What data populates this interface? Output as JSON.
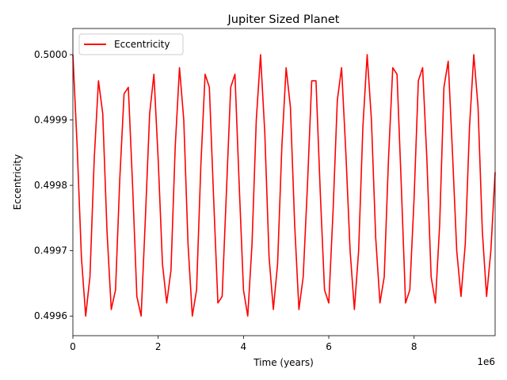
{
  "chart_data": {
    "type": "line",
    "title": "Jupiter Sized Planet",
    "xlabel": "Time (years)",
    "ylabel": "Eccentricity",
    "x_offset_label": "1e6",
    "xlim": [
      0,
      9.9
    ],
    "ylim": [
      0.49957,
      0.50004
    ],
    "xticks": [
      0,
      2,
      4,
      6,
      8
    ],
    "xtick_labels": [
      "0",
      "2",
      "4",
      "6",
      "8"
    ],
    "yticks": [
      0.4996,
      0.4997,
      0.4998,
      0.4999,
      0.5
    ],
    "ytick_labels": [
      "0.4996",
      "0.4997",
      "0.4998",
      "0.4999",
      "0.5000"
    ],
    "grid": false,
    "legend_position": "upper-left",
    "series": [
      {
        "name": "Eccentricity",
        "color": "#ff0000",
        "x": [
          0,
          0.1,
          0.2,
          0.3,
          0.4,
          0.5,
          0.6,
          0.7,
          0.8,
          0.9,
          1.0,
          1.1,
          1.2,
          1.3,
          1.4,
          1.5,
          1.6,
          1.7,
          1.8,
          1.9,
          2.0,
          2.1,
          2.2,
          2.3,
          2.4,
          2.5,
          2.6,
          2.7,
          2.8,
          2.9,
          3.0,
          3.1,
          3.2,
          3.3,
          3.4,
          3.5,
          3.6,
          3.7,
          3.8,
          3.9,
          4.0,
          4.1,
          4.2,
          4.3,
          4.4,
          4.5,
          4.6,
          4.7,
          4.8,
          4.9,
          5.0,
          5.1,
          5.2,
          5.3,
          5.4,
          5.5,
          5.6,
          5.7,
          5.8,
          5.9,
          6.0,
          6.1,
          6.2,
          6.3,
          6.4,
          6.5,
          6.6,
          6.7,
          6.8,
          6.9,
          7.0,
          7.1,
          7.2,
          7.3,
          7.4,
          7.5,
          7.6,
          7.7,
          7.8,
          7.9,
          8.0,
          8.1,
          8.2,
          8.3,
          8.4,
          8.5,
          8.6,
          8.7,
          8.8,
          8.9,
          9.0,
          9.1,
          9.2,
          9.3,
          9.4,
          9.5,
          9.6,
          9.7,
          9.8,
          9.9
        ],
        "values": [
          0.5,
          0.49986,
          0.49969,
          0.4996,
          0.49966,
          0.49984,
          0.49996,
          0.49991,
          0.49973,
          0.49961,
          0.49964,
          0.49981,
          0.49994,
          0.49995,
          0.4998,
          0.49963,
          0.4996,
          0.49975,
          0.49991,
          0.49997,
          0.49984,
          0.49968,
          0.49962,
          0.49967,
          0.49986,
          0.49998,
          0.4999,
          0.49971,
          0.4996,
          0.49964,
          0.49983,
          0.49997,
          0.49995,
          0.49978,
          0.49962,
          0.49963,
          0.49979,
          0.49995,
          0.49997,
          0.4998,
          0.49964,
          0.4996,
          0.49971,
          0.4999,
          0.5,
          0.49988,
          0.49969,
          0.49961,
          0.49968,
          0.49986,
          0.49998,
          0.49992,
          0.49974,
          0.49961,
          0.49966,
          0.4998,
          0.49996,
          0.49996,
          0.49979,
          0.49964,
          0.49962,
          0.49976,
          0.49993,
          0.49998,
          0.49985,
          0.4997,
          0.49961,
          0.4997,
          0.49989,
          0.5,
          0.4999,
          0.49972,
          0.49962,
          0.49966,
          0.49984,
          0.49998,
          0.49997,
          0.4998,
          0.49962,
          0.49964,
          0.49978,
          0.49996,
          0.49998,
          0.49984,
          0.49966,
          0.49962,
          0.49974,
          0.49995,
          0.49999,
          0.49985,
          0.4997,
          0.49963,
          0.49971,
          0.49989,
          0.5,
          0.49992,
          0.49973,
          0.49963,
          0.4997,
          0.49982
        ]
      }
    ]
  }
}
